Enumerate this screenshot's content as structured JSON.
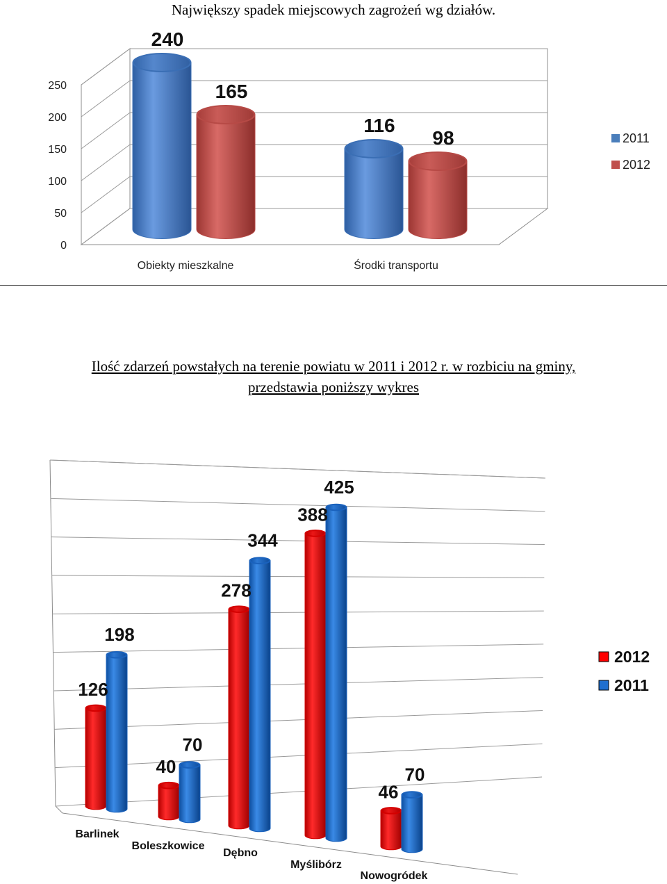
{
  "heading": "Największy spadek miejscowych zagrożeń wg działów.",
  "paragraph": {
    "line1": "Ilość zdarzeń powstałych na terenie powiatu w 2011 i 2012 r.  w rozbiciu na gminy,",
    "line2": "przedstawia poniższy wykres"
  },
  "chart_data": [
    {
      "type": "bar",
      "title": "",
      "categories": [
        "Obiekty mieszkalne",
        "Środki transportu"
      ],
      "series": [
        {
          "name": "2011",
          "values": [
            240,
            116
          ],
          "color": "#4a7ebb"
        },
        {
          "name": "2012",
          "values": [
            165,
            98
          ],
          "color": "#c0504d"
        }
      ],
      "yticks": [
        "0",
        "50",
        "100",
        "150",
        "200",
        "250"
      ],
      "ylim": [
        0,
        250
      ],
      "grid": true,
      "legend": "right"
    },
    {
      "type": "bar",
      "title": "",
      "categories": [
        "Barlinek",
        "Boleszkowice",
        "Dębno",
        "Myślibórz",
        "Nowogródek"
      ],
      "series": [
        {
          "name": "2012",
          "values": [
            126,
            40,
            278,
            388,
            46
          ],
          "color": "#ff0000"
        },
        {
          "name": "2011",
          "values": [
            198,
            70,
            344,
            425,
            70
          ],
          "color": "#1f6fcf"
        }
      ],
      "ylim": [
        0,
        450
      ],
      "grid": true,
      "legend": "right"
    }
  ]
}
